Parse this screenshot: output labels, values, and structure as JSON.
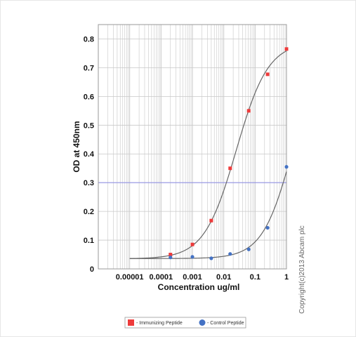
{
  "chart_data": {
    "type": "scatter",
    "title": "",
    "xlabel": "Concentration ug/ml",
    "ylabel": "OD at 450nm",
    "x_scale": "log",
    "xlim": [
      1e-06,
      1
    ],
    "ylim": [
      0,
      0.85
    ],
    "x_ticks": [
      1e-05,
      0.0001,
      0.001,
      0.01,
      0.1,
      1
    ],
    "x_tick_labels": [
      "0.00001",
      "0.0001",
      "0.001",
      "0.01",
      "0.1",
      "1"
    ],
    "y_ticks": [
      0,
      0.1,
      0.2,
      0.3,
      0.4,
      0.5,
      0.6,
      0.7,
      0.8
    ],
    "y_tick_labels": [
      "0",
      "0.1",
      "0.2",
      "0.3",
      "0.4",
      "0.5",
      "0.6",
      "0.7",
      "0.8"
    ],
    "grid": true,
    "reference_line": {
      "y": 0.3,
      "color": "#8a8ae6"
    },
    "legend_position": "bottom-center",
    "series": [
      {
        "name": "- Immunizing Peptide",
        "color": "#ee3b3b",
        "marker": "square",
        "x": [
          0.0002,
          0.001,
          0.004,
          0.016,
          0.0625,
          0.25,
          1
        ],
        "y": [
          0.05,
          0.085,
          0.168,
          0.35,
          0.55,
          0.677,
          0.765
        ]
      },
      {
        "name": "- Control Peptide",
        "color": "#4472c4",
        "marker": "circle",
        "x": [
          0.0002,
          0.001,
          0.004,
          0.016,
          0.0625,
          0.25,
          1
        ],
        "y": [
          0.04,
          0.042,
          0.037,
          0.052,
          0.068,
          0.143,
          0.355
        ]
      }
    ],
    "fit_curves": [
      {
        "series": "- Immunizing Peptide",
        "bottom": 0.035,
        "top": 0.79,
        "ec50": 0.025,
        "hill": 0.85,
        "x_from": 1e-05,
        "x_to": 1
      },
      {
        "series": "- Control Peptide",
        "bottom": 0.036,
        "top": 0.8,
        "ec50": 1.6,
        "hill": 0.9,
        "x_from": 1e-05,
        "x_to": 1
      }
    ],
    "curve_color": "#666666",
    "grid_color": "#c8c8c8"
  },
  "copyright": "Copyright(c)2013 Abcam plc"
}
